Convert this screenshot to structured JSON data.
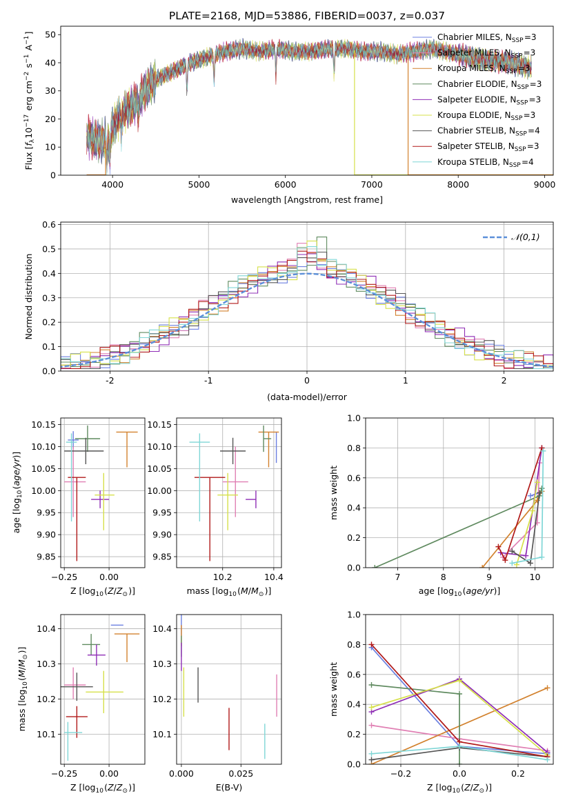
{
  "figure_title": "PLATE=2168, MJD=53886, FIBERID=0037, z=0.037",
  "colors": {
    "Chabrier MILES": "#6b7fe0",
    "Salpeter MILES": "#e07fb3",
    "Kroupa MILES": "#d2812d",
    "Chabrier ELODIE": "#5f8a5f",
    "Salpeter ELODIE": "#8e2cb5",
    "Kroupa ELODIE": "#d6e04a",
    "Chabrier STELIB": "#555555",
    "Salpeter STELIB": "#b01818",
    "Kroupa STELIB": "#7fd6d6"
  },
  "chart_data": [
    {
      "id": "spectrum",
      "type": "line",
      "title": "PLATE=2168, MJD=53886, FIBERID=0037, z=0.037",
      "xlabel": "wavelength [Angstrom, rest frame]",
      "ylabel": "Flux [f_λ 10^-17 erg cm^-2 s^-1 A^-1]",
      "xlim": [
        3400,
        9100
      ],
      "ylim": [
        0,
        53
      ],
      "xticks": [
        4000,
        5000,
        6000,
        7000,
        8000,
        9000
      ],
      "yticks": [
        0,
        10,
        20,
        30,
        40,
        50
      ],
      "legend_position": "upper right",
      "legend": [
        "Chabrier MILES, N_SSP=3",
        "Salpeter MILES, N_SSP=3",
        "Kroupa MILES, N_SSP=3",
        "Chabrier ELODIE, N_SSP=3",
        "Salpeter ELODIE, N_SSP=3",
        "Kroupa ELODIE, N_SSP=3",
        "Chabrier STELIB, N_SSP=4",
        "Salpeter STELIB, N_SSP=3",
        "Kroupa STELIB, N_SSP=4"
      ],
      "continuum": {
        "x": [
          3700,
          3850,
          3950,
          4000,
          4100,
          4200,
          4300,
          4400,
          4500,
          4700,
          4900,
          5100,
          5300,
          5500,
          5700,
          5900,
          6100,
          6300,
          6500,
          6700,
          6900,
          7100,
          7300,
          7500,
          7700,
          8000,
          8300,
          8600,
          8850
        ],
        "y": [
          14,
          12,
          13,
          17,
          22,
          24,
          27,
          31,
          34,
          37,
          40,
          42,
          44,
          45,
          44,
          45,
          44,
          44,
          45,
          45,
          44,
          44,
          43,
          44,
          45,
          43,
          41,
          40,
          38
        ]
      },
      "absorption_features": [
        [
          3934,
          36
        ],
        [
          3969,
          34
        ],
        [
          4102,
          27
        ],
        [
          4300,
          24
        ],
        [
          4861,
          34
        ],
        [
          5175,
          31
        ],
        [
          5890,
          38
        ],
        [
          6563,
          41
        ]
      ],
      "model_drops": [
        {
          "series": "Kroupa MILES",
          "wavelength": 3920,
          "x_end": 3700
        },
        {
          "series": "Kroupa ELODIE",
          "wavelength": 6800,
          "x_end": 9100
        },
        {
          "series": "Kroupa MILES",
          "wavelength": 7420,
          "x_end": 9100
        }
      ]
    },
    {
      "id": "residual_hist",
      "type": "bar",
      "xlabel": "(data-model)/error",
      "ylabel": "Normed distribution",
      "xlim": [
        -2.5,
        2.5
      ],
      "ylim": [
        0,
        0.61
      ],
      "xticks": [
        -2,
        -1,
        0,
        1,
        2
      ],
      "yticks": [
        0.0,
        0.1,
        0.2,
        0.3,
        0.4,
        0.5,
        0.6
      ],
      "legend": [
        "𝒩(0,1)"
      ],
      "legend_position": "upper right",
      "bin_width": 0.1,
      "reference_curve": "normal(0,1)"
    },
    {
      "id": "age_vs_Z",
      "type": "scatter",
      "xlabel": "Z [log10(Z/Z⊙)]",
      "ylabel": "age [log10(age/yr)]",
      "xlim": [
        -0.27,
        0.2
      ],
      "ylim": [
        9.825,
        10.165
      ],
      "xticks": [
        -0.25,
        0.0
      ],
      "xticklabels": [
        "−0.25",
        "0.00"
      ],
      "yticks": [
        9.85,
        9.9,
        9.95,
        10.0,
        10.05,
        10.1,
        10.15
      ],
      "points": [
        {
          "series": "Chabrier MILES",
          "x": -0.2,
          "y": 10.115,
          "xerr": [
            0.03,
            0.03
          ],
          "yerr": [
            0.02,
            0.02
          ]
        },
        {
          "series": "Salpeter MILES",
          "x": -0.2,
          "y": 10.02,
          "xerr": [
            0.05,
            0.07
          ],
          "yerr": [
            0.08,
            0.08
          ]
        },
        {
          "series": "Kroupa MILES",
          "x": 0.1,
          "y": 10.133,
          "xerr": [
            0.06,
            0.06
          ],
          "yerr": [
            0.08,
            0.0
          ]
        },
        {
          "series": "Chabrier ELODIE",
          "x": -0.12,
          "y": 10.118,
          "xerr": [
            0.07,
            0.07
          ],
          "yerr": [
            0.03,
            0.03
          ]
        },
        {
          "series": "Salpeter ELODIE",
          "x": -0.05,
          "y": 9.98,
          "xerr": [
            0.05,
            0.05
          ],
          "yerr": [
            0.02,
            0.02
          ]
        },
        {
          "series": "Kroupa ELODIE",
          "x": -0.03,
          "y": 9.99,
          "xerr": [
            0.05,
            0.06
          ],
          "yerr": [
            0.08,
            0.05
          ]
        },
        {
          "series": "Chabrier STELIB",
          "x": -0.13,
          "y": 10.09,
          "xerr": [
            0.12,
            0.1
          ],
          "yerr": [
            0.03,
            0.03
          ]
        },
        {
          "series": "Salpeter STELIB",
          "x": -0.18,
          "y": 10.03,
          "xerr": [
            0.05,
            0.05
          ],
          "yerr": [
            0.19,
            0.0
          ]
        },
        {
          "series": "Kroupa STELIB",
          "x": -0.21,
          "y": 10.11,
          "xerr": [
            0.03,
            0.03
          ],
          "yerr": [
            0.18,
            0.02
          ]
        }
      ]
    },
    {
      "id": "age_vs_mass",
      "type": "scatter",
      "xlabel": "mass [log10(M/M⊙)]",
      "ylabel": "",
      "xlim": [
        10.02,
        10.43
      ],
      "ylim": [
        9.825,
        10.165
      ],
      "xticks": [
        10.2,
        10.4
      ],
      "yticks": [
        9.85,
        9.9,
        9.95,
        10.0,
        10.05,
        10.1,
        10.15
      ],
      "points": [
        {
          "series": "Chabrier MILES",
          "x": 10.41,
          "y": 10.133,
          "xerr": [
            0.0,
            0.0
          ],
          "yerr": [
            0.07,
            0.0
          ]
        },
        {
          "series": "Salpeter MILES",
          "x": 10.25,
          "y": 10.02,
          "xerr": [
            0.05,
            0.05
          ],
          "yerr": [
            0.08,
            0.08
          ]
        },
        {
          "series": "Kroupa MILES",
          "x": 10.38,
          "y": 10.133,
          "xerr": [
            0.04,
            0.04
          ],
          "yerr": [
            0.08,
            0.0
          ]
        },
        {
          "series": "Chabrier ELODIE",
          "x": 10.36,
          "y": 10.118,
          "xerr": [
            0.0,
            0.03
          ],
          "yerr": [
            0.03,
            0.03
          ]
        },
        {
          "series": "Salpeter ELODIE",
          "x": 10.33,
          "y": 9.98,
          "xerr": [
            0.04,
            0.0
          ],
          "yerr": [
            0.02,
            0.02
          ]
        },
        {
          "series": "Kroupa ELODIE",
          "x": 10.22,
          "y": 9.99,
          "xerr": [
            0.04,
            0.04
          ],
          "yerr": [
            0.08,
            0.05
          ]
        },
        {
          "series": "Chabrier STELIB",
          "x": 10.24,
          "y": 10.09,
          "xerr": [
            0.05,
            0.05
          ],
          "yerr": [
            0.03,
            0.03
          ]
        },
        {
          "series": "Salpeter STELIB",
          "x": 10.15,
          "y": 10.03,
          "xerr": [
            0.06,
            0.06
          ],
          "yerr": [
            0.19,
            0.0
          ]
        },
        {
          "series": "Kroupa STELIB",
          "x": 10.11,
          "y": 10.11,
          "xerr": [
            0.04,
            0.04
          ],
          "yerr": [
            0.18,
            0.02
          ]
        }
      ]
    },
    {
      "id": "weight_vs_age",
      "type": "line",
      "xlabel": "age [log10(age/yr)]",
      "ylabel": "mass weight",
      "xlim": [
        6.3,
        10.4
      ],
      "ylim": [
        0,
        1.0
      ],
      "xticks": [
        7,
        8,
        9,
        10
      ],
      "yticks": [
        0.0,
        0.2,
        0.4,
        0.6,
        0.8,
        1.0
      ],
      "series": [
        {
          "name": "Chabrier MILES",
          "x": [
            9.9,
            10.1
          ],
          "y": [
            0.48,
            0.5
          ]
        },
        {
          "name": "Salpeter MILES",
          "x": [
            9.3,
            10.05,
            10.1
          ],
          "y": [
            0.07,
            0.3,
            0.7
          ]
        },
        {
          "name": "Kroupa MILES",
          "x": [
            8.85,
            10.05,
            10.15
          ],
          "y": [
            0.0,
            0.45,
            0.51
          ]
        },
        {
          "name": "Chabrier ELODIE",
          "x": [
            6.5,
            10.1,
            10.15
          ],
          "y": [
            0.0,
            0.48,
            0.53
          ]
        },
        {
          "name": "Salpeter ELODIE",
          "x": [
            9.25,
            9.8,
            10.15
          ],
          "y": [
            0.1,
            0.08,
            0.8
          ]
        },
        {
          "name": "Kroupa ELODIE",
          "x": [
            9.6,
            9.95,
            10.05
          ],
          "y": [
            0.02,
            0.38,
            0.57
          ]
        },
        {
          "name": "Chabrier STELIB",
          "x": [
            9.5,
            9.9,
            10.1
          ],
          "y": [
            0.11,
            0.03,
            0.5
          ]
        },
        {
          "name": "Salpeter STELIB",
          "x": [
            9.2,
            9.35,
            10.15
          ],
          "y": [
            0.14,
            0.05,
            0.8
          ]
        },
        {
          "name": "Kroupa STELIB",
          "x": [
            9.5,
            10.15,
            10.18
          ],
          "y": [
            0.03,
            0.07,
            0.78
          ]
        }
      ]
    },
    {
      "id": "mass_vs_Z",
      "type": "scatter",
      "xlabel": "Z [log10(Z/Z⊙)]",
      "ylabel": "mass [log10(M/M⊙)]",
      "xlim": [
        -0.27,
        0.2
      ],
      "ylim": [
        10.015,
        10.44
      ],
      "xticks": [
        -0.25,
        0.0
      ],
      "xticklabels": [
        "−0.25",
        "0.00"
      ],
      "yticks": [
        10.1,
        10.2,
        10.3,
        10.4
      ],
      "points": [
        {
          "series": "Chabrier MILES",
          "x": 0.08,
          "y": 10.41,
          "xerr": [
            0.07,
            0.0
          ],
          "yerr": [
            0.0,
            0.0
          ]
        },
        {
          "series": "Salpeter MILES",
          "x": -0.2,
          "y": 10.24,
          "xerr": [
            0.05,
            0.07
          ],
          "yerr": [
            0.04,
            0.05
          ]
        },
        {
          "series": "Kroupa MILES",
          "x": 0.1,
          "y": 10.385,
          "xerr": [
            0.07,
            0.07
          ],
          "yerr": [
            0.08,
            0.0
          ]
        },
        {
          "series": "Chabrier ELODIE",
          "x": -0.1,
          "y": 10.355,
          "xerr": [
            0.05,
            0.05
          ],
          "yerr": [
            0.03,
            0.03
          ]
        },
        {
          "series": "Salpeter ELODIE",
          "x": -0.07,
          "y": 10.325,
          "xerr": [
            0.05,
            0.05
          ],
          "yerr": [
            0.03,
            0.03
          ]
        },
        {
          "series": "Kroupa ELODIE",
          "x": -0.03,
          "y": 10.22,
          "xerr": [
            0.1,
            0.11
          ],
          "yerr": [
            0.06,
            0.06
          ]
        },
        {
          "series": "Chabrier STELIB",
          "x": -0.18,
          "y": 10.235,
          "xerr": [
            0.09,
            0.09
          ],
          "yerr": [
            0.04,
            0.04
          ]
        },
        {
          "series": "Salpeter STELIB",
          "x": -0.18,
          "y": 10.15,
          "xerr": [
            0.06,
            0.06
          ],
          "yerr": [
            0.06,
            0.03
          ]
        },
        {
          "series": "Kroupa STELIB",
          "x": -0.23,
          "y": 10.105,
          "xerr": [
            0.02,
            0.08
          ],
          "yerr": [
            0.08,
            0.03
          ]
        }
      ]
    },
    {
      "id": "mass_vs_ebv",
      "type": "scatter",
      "xlabel": "E(B-V)",
      "ylabel": "",
      "xlim": [
        -0.002,
        0.042
      ],
      "ylim": [
        10.015,
        10.44
      ],
      "xticks": [
        0.0,
        0.025
      ],
      "xticklabels": [
        "0.000",
        "0.025"
      ],
      "yticks": [
        10.1,
        10.2,
        10.3,
        10.4
      ],
      "points": [
        {
          "series": "Chabrier MILES",
          "x": 0.0,
          "y": 10.41,
          "xerr": [
            0,
            0
          ],
          "yerr": [
            0.03,
            0.03
          ]
        },
        {
          "series": "Salpeter MILES",
          "x": 0.04,
          "y": 10.21,
          "xerr": [
            0,
            0
          ],
          "yerr": [
            0.06,
            0.06
          ]
        },
        {
          "series": "Kroupa MILES",
          "x": 0.0,
          "y": 10.38,
          "xerr": [
            0,
            0
          ],
          "yerr": [
            0.03,
            0.03
          ]
        },
        {
          "series": "Chabrier ELODIE",
          "x": 0.0,
          "y": 10.35,
          "xerr": [
            0,
            0
          ],
          "yerr": [
            0.03,
            0.03
          ]
        },
        {
          "series": "Salpeter ELODIE",
          "x": 0.0,
          "y": 10.32,
          "xerr": [
            0,
            0
          ],
          "yerr": [
            0.04,
            0.04
          ]
        },
        {
          "series": "Kroupa ELODIE",
          "x": 0.001,
          "y": 10.22,
          "xerr": [
            0,
            0
          ],
          "yerr": [
            0.07,
            0.07
          ]
        },
        {
          "series": "Chabrier STELIB",
          "x": 0.007,
          "y": 10.24,
          "xerr": [
            0,
            0
          ],
          "yerr": [
            0.05,
            0.05
          ]
        },
        {
          "series": "Salpeter STELIB",
          "x": 0.02,
          "y": 10.115,
          "xerr": [
            0,
            0
          ],
          "yerr": [
            0.06,
            0.06
          ]
        },
        {
          "series": "Kroupa STELIB",
          "x": 0.035,
          "y": 10.08,
          "xerr": [
            0,
            0
          ],
          "yerr": [
            0.05,
            0.05
          ]
        }
      ]
    },
    {
      "id": "weight_vs_Z",
      "type": "line",
      "xlabel": "Z [log10(Z/Z⊙)]",
      "ylabel": "mass weight",
      "xlim": [
        -0.32,
        0.32
      ],
      "ylim": [
        0,
        1.0
      ],
      "xticks": [
        -0.2,
        0.0,
        0.2
      ],
      "xticklabels": [
        "−0.2",
        "0.0",
        "0.2"
      ],
      "yticks": [
        0.0,
        0.2,
        0.4,
        0.6,
        0.8,
        1.0
      ],
      "series": [
        {
          "name": "Chabrier MILES",
          "x": [
            -0.3,
            0.0,
            0.3
          ],
          "y": [
            0.78,
            0.12,
            0.07
          ]
        },
        {
          "name": "Salpeter MILES",
          "x": [
            -0.3,
            0.0,
            0.3
          ],
          "y": [
            0.26,
            0.17,
            0.09
          ]
        },
        {
          "name": "Kroupa MILES",
          "x": [
            -0.3,
            0.3
          ],
          "y": [
            0.0,
            0.51
          ]
        },
        {
          "name": "Chabrier ELODIE",
          "x": [
            -0.3,
            0.0,
            0.0
          ],
          "y": [
            0.53,
            0.47,
            0.0
          ]
        },
        {
          "name": "Salpeter ELODIE",
          "x": [
            -0.3,
            0.0,
            0.3
          ],
          "y": [
            0.35,
            0.57,
            0.08
          ]
        },
        {
          "name": "Kroupa ELODIE",
          "x": [
            -0.3,
            0.0,
            0.3
          ],
          "y": [
            0.38,
            0.56,
            0.06
          ]
        },
        {
          "name": "Chabrier STELIB",
          "x": [
            -0.3,
            0.0,
            0.3
          ],
          "y": [
            0.03,
            0.11,
            0.05
          ]
        },
        {
          "name": "Salpeter STELIB",
          "x": [
            -0.3,
            0.0,
            0.3
          ],
          "y": [
            0.8,
            0.15,
            0.05
          ]
        },
        {
          "name": "Kroupa STELIB",
          "x": [
            -0.3,
            0.0,
            0.3
          ],
          "y": [
            0.07,
            0.12,
            0.03
          ]
        }
      ]
    }
  ]
}
